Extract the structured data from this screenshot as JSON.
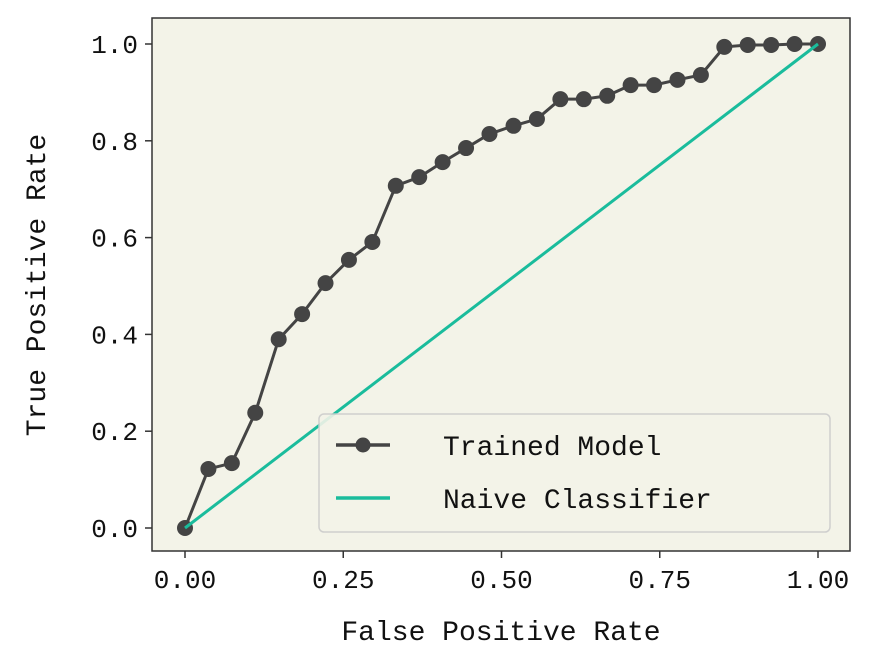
{
  "chart_data": {
    "type": "line",
    "title": "",
    "xlabel": "False Positive Rate",
    "ylabel": "True Positive Rate",
    "xlim": [
      -0.05,
      1.05
    ],
    "ylim": [
      -0.05,
      1.05
    ],
    "xticks": [
      0,
      0.25,
      0.5,
      0.75,
      1.0
    ],
    "xtick_labels": [
      "0.00",
      "0.25",
      "0.50",
      "0.75",
      "1.00"
    ],
    "yticks": [
      0,
      0.2,
      0.4,
      0.6,
      0.8,
      1.0
    ],
    "ytick_labels": [
      "0.0",
      "0.2",
      "0.4",
      "0.6",
      "0.8",
      "1.0"
    ],
    "grid": false,
    "legend_position": "lower-right",
    "background": "#f3f3e8",
    "series": [
      {
        "name": "Trained Model",
        "color": "#444444",
        "marker": "circle",
        "x": [
          0,
          0.037,
          0.074,
          0.111,
          0.148,
          0.185,
          0.222,
          0.259,
          0.296,
          0.333,
          0.37,
          0.407,
          0.444,
          0.481,
          0.519,
          0.556,
          0.593,
          0.63,
          0.667,
          0.704,
          0.741,
          0.778,
          0.815,
          0.852,
          0.889,
          0.926,
          0.963,
          1.0
        ],
        "y": [
          0,
          0.122,
          0.134,
          0.238,
          0.39,
          0.442,
          0.506,
          0.554,
          0.591,
          0.707,
          0.725,
          0.756,
          0.785,
          0.814,
          0.831,
          0.845,
          0.886,
          0.886,
          0.893,
          0.915,
          0.915,
          0.926,
          0.936,
          0.994,
          0.998,
          0.998,
          1.0,
          1.0
        ]
      },
      {
        "name": "Naive Classifier",
        "color": "#1abc9c",
        "marker": "none",
        "x": [
          0,
          1
        ],
        "y": [
          0,
          1
        ]
      }
    ]
  }
}
